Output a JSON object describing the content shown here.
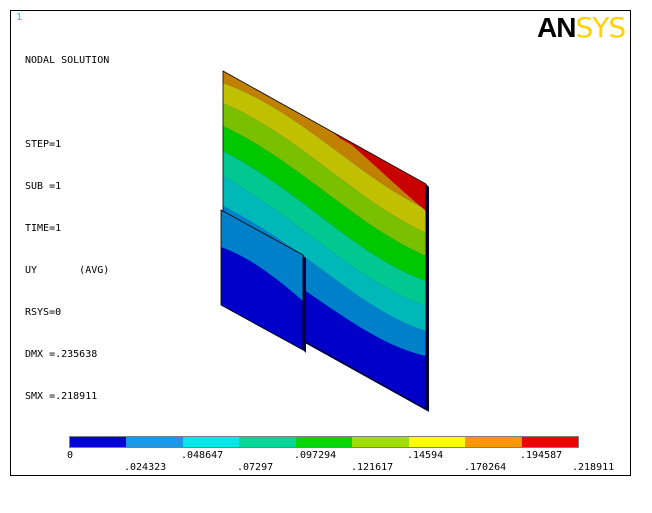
{
  "window_number": "1",
  "logo": {
    "main": "AN",
    "accent": "SYS"
  },
  "info": [
    "NODAL SOLUTION",
    "",
    "STEP=1",
    "SUB =1",
    "TIME=1",
    "UY       (AVG)",
    "RSYS=0",
    "DMX =.235638",
    "SMX =.218911"
  ],
  "contour_colors": [
    "#0000c8",
    "#0080c8",
    "#00b8b8",
    "#00c890",
    "#00c800",
    "#78c000",
    "#c0c000",
    "#c08000",
    "#c80000"
  ],
  "legend_colors": [
    "#0000d8",
    "#1898e8",
    "#00e8e8",
    "#00d898",
    "#00d800",
    "#a0e000",
    "#ffff00",
    "#ff9800",
    "#f00000"
  ],
  "legend_labels_top": [
    "0",
    ".048647",
    ".097294",
    ".14594",
    ".194587"
  ],
  "legend_labels_bottom": [
    ".024323",
    ".07297",
    ".121617",
    ".170264",
    ".218911"
  ]
}
